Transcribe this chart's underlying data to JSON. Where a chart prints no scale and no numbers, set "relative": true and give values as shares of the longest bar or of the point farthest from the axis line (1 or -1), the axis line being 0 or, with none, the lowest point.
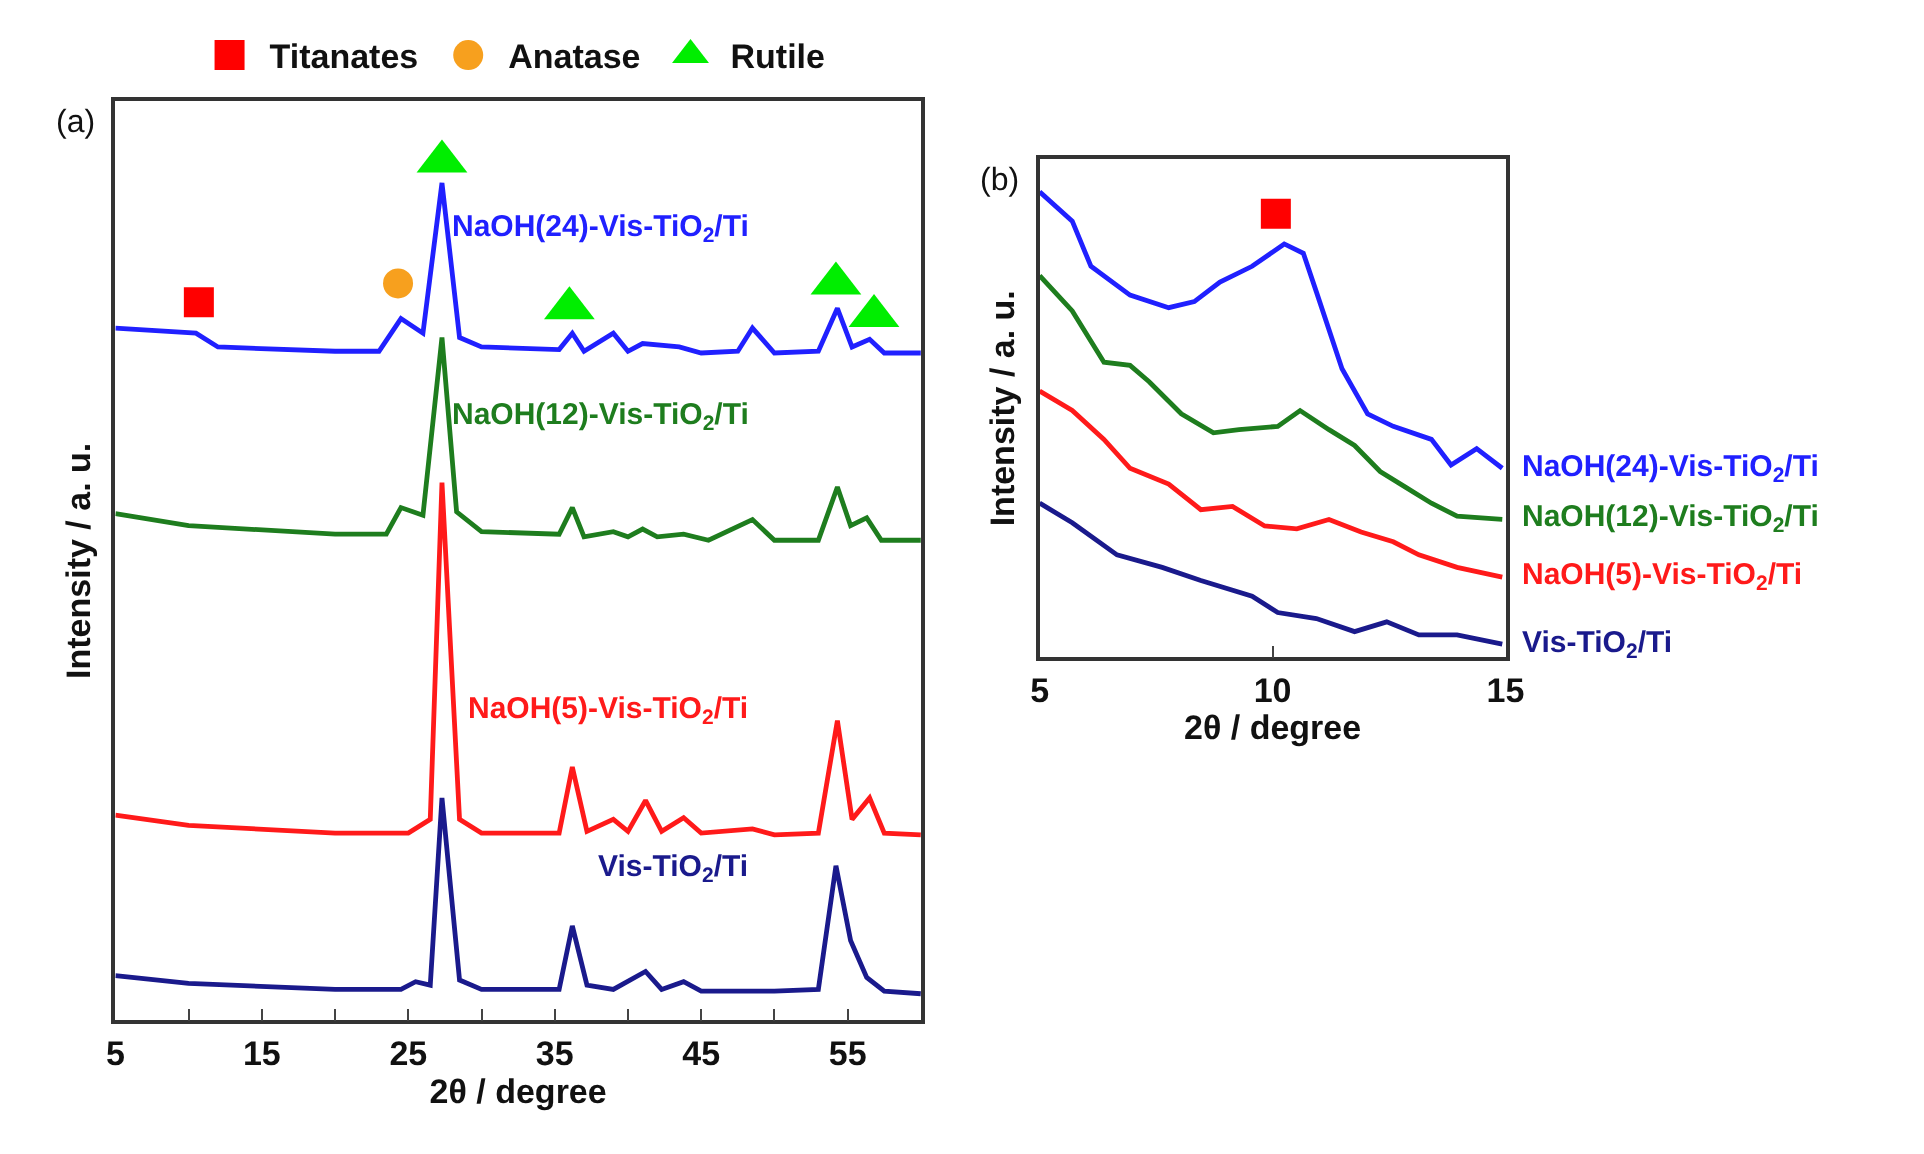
{
  "chart_data": [
    {
      "type": "line",
      "relative": true,
      "xlabel": "2θ / degree",
      "ylabel": "Intensity / a. u.",
      "xlim": [
        5,
        60
      ],
      "xticks": [
        5,
        {
          "value": 10,
          "label": null
        },
        15,
        {
          "value": 20,
          "label": null
        },
        25,
        {
          "value": 30,
          "label": null
        },
        35,
        {
          "value": 40,
          "label": null
        },
        45,
        {
          "value": 50,
          "label": null
        },
        55
      ],
      "legend": "top",
      "annotations": [
        "(a)"
      ],
      "series": [
        {
          "name": "NaOH(24)-Vis-TiO$_{2}$/Ti",
          "color": "#2020ff",
          "x": [
            5,
            10.5,
            12,
            20,
            23,
            24.5,
            26,
            27.3,
            28.5,
            30,
            35.3,
            36.2,
            37,
            39,
            40,
            41,
            43.5,
            45,
            47.5,
            48.5,
            50,
            53,
            54.3,
            55.3,
            56.5,
            57.5,
            60
          ],
          "values": [
            0.806,
            0.8,
            0.784,
            0.779,
            0.779,
            0.817,
            0.8,
            0.975,
            0.795,
            0.784,
            0.781,
            0.8,
            0.779,
            0.8,
            0.779,
            0.788,
            0.784,
            0.777,
            0.779,
            0.806,
            0.777,
            0.779,
            0.829,
            0.784,
            0.793,
            0.777,
            0.777
          ]
        },
        {
          "name": "NaOH(12)-Vis-TiO$_{2}$/Ti",
          "color": "#1e7d1e",
          "x": [
            5,
            10,
            20,
            23.5,
            24.5,
            26,
            27.3,
            28.3,
            30,
            35.3,
            36.2,
            37,
            39,
            40,
            41,
            42,
            43.8,
            45.5,
            48.5,
            50,
            53,
            54.3,
            55.2,
            56.3,
            57.3,
            60
          ],
          "values": [
            0.59,
            0.576,
            0.566,
            0.566,
            0.597,
            0.588,
            0.795,
            0.592,
            0.569,
            0.566,
            0.597,
            0.563,
            0.569,
            0.563,
            0.572,
            0.563,
            0.566,
            0.559,
            0.583,
            0.559,
            0.559,
            0.621,
            0.576,
            0.585,
            0.559,
            0.559
          ]
        },
        {
          "name": "NaOH(5)-Vis-TiO$_{2}$/Ti",
          "color": "#ff1a1a",
          "x": [
            5,
            10,
            20,
            25,
            26.5,
            27.3,
            28.5,
            30,
            35.3,
            36.2,
            37.2,
            39,
            40,
            41.2,
            42.3,
            43.8,
            45,
            48.5,
            50,
            53,
            54.3,
            55.3,
            56.5,
            57.5,
            60
          ],
          "values": [
            0.239,
            0.227,
            0.218,
            0.218,
            0.234,
            0.626,
            0.234,
            0.218,
            0.218,
            0.295,
            0.22,
            0.234,
            0.22,
            0.256,
            0.22,
            0.236,
            0.218,
            0.223,
            0.216,
            0.218,
            0.349,
            0.234,
            0.259,
            0.218,
            0.216
          ]
        },
        {
          "name": "Vis-TiO$_{2}$/Ti",
          "color": "#1a1a8c",
          "x": [
            5,
            10,
            20,
            24.5,
            25.5,
            26.5,
            27.3,
            28.5,
            30,
            35.3,
            36.2,
            37.2,
            39,
            41.2,
            42.3,
            43.8,
            45,
            50,
            53,
            54.2,
            55.2,
            56.3,
            57.5,
            60
          ],
          "values": [
            0.052,
            0.043,
            0.036,
            0.036,
            0.045,
            0.041,
            0.259,
            0.047,
            0.036,
            0.036,
            0.11,
            0.041,
            0.036,
            0.057,
            0.036,
            0.045,
            0.034,
            0.034,
            0.036,
            0.18,
            0.093,
            0.05,
            0.034,
            0.031
          ]
        },
        {
          "type": "scatter",
          "name": "Titanates",
          "color": "#ff0000",
          "marker": "square",
          "x": [
            10.7
          ],
          "values": [
            0.836
          ]
        },
        {
          "type": "scatter",
          "name": "Anatase",
          "color": "#f7a01e",
          "marker": "circle",
          "x": [
            24.3
          ],
          "values": [
            0.858
          ]
        },
        {
          "type": "scatter",
          "name": "Rutile",
          "color": "#00ee00",
          "marker": "triangle",
          "x": [
            27.3,
            36.0,
            54.2,
            56.8
          ],
          "values": [
            1,
            0.829,
            0.858,
            0.82
          ]
        }
      ]
    },
    {
      "type": "line",
      "relative": true,
      "xlabel": "2θ / degree",
      "ylabel": "Intensity / a. u.",
      "xlim": [
        5,
        15
      ],
      "xticks": [
        5,
        10,
        15
      ],
      "annotations": [
        "(b)"
      ],
      "series": [
        {
          "name": "NaOH(24)-Vis-TiO$_{2}$/Ti",
          "color": "#2020ff",
          "x": [
            5.0,
            5.7,
            6.1,
            6.94,
            7.77,
            8.32,
            8.87,
            9.56,
            10.25,
            10.66,
            10.94,
            11.49,
            12.04,
            12.59,
            13.41,
            13.83,
            14.38,
            14.93
          ],
          "values": [
            1,
            0.937,
            0.84,
            0.778,
            0.751,
            0.764,
            0.806,
            0.84,
            0.888,
            0.868,
            0.785,
            0.62,
            0.523,
            0.496,
            0.468,
            0.413,
            0.448,
            0.406
          ]
        },
        {
          "name": "NaOH(12)-Vis-TiO$_{2}$/Ti",
          "color": "#1e7d1e",
          "x": [
            5.0,
            5.7,
            6.38,
            6.94,
            7.35,
            8.04,
            8.73,
            9.28,
            10.11,
            10.59,
            11.21,
            11.76,
            12.31,
            12.86,
            13.41,
            13.96,
            14.93
          ],
          "values": [
            0.82,
            0.744,
            0.634,
            0.627,
            0.592,
            0.523,
            0.482,
            0.489,
            0.496,
            0.53,
            0.489,
            0.455,
            0.399,
            0.365,
            0.331,
            0.303,
            0.296
          ]
        },
        {
          "name": "NaOH(5)-Vis-TiO$_{2}$/Ti",
          "color": "#ff1a1a",
          "x": [
            5.0,
            5.7,
            6.38,
            6.94,
            7.77,
            8.46,
            9.14,
            9.83,
            10.52,
            11.21,
            11.9,
            12.59,
            13.14,
            13.96,
            14.93
          ],
          "values": [
            0.572,
            0.53,
            0.468,
            0.406,
            0.372,
            0.317,
            0.324,
            0.282,
            0.276,
            0.296,
            0.269,
            0.248,
            0.22,
            0.193,
            0.172
          ]
        },
        {
          "name": "Vis-TiO$_{2}$/Ti",
          "color": "#1a1a8c",
          "x": [
            5.0,
            5.7,
            6.66,
            7.63,
            8.46,
            9.56,
            10.11,
            10.94,
            11.76,
            12.45,
            13.14,
            13.96,
            14.93
          ],
          "values": [
            0.331,
            0.289,
            0.22,
            0.193,
            0.165,
            0.131,
            0.096,
            0.083,
            0.055,
            0.076,
            0.048,
            0.048,
            0.028
          ]
        },
        {
          "type": "scatter",
          "color": "#ff0000",
          "marker": "square",
          "x": [
            10.07
          ],
          "values": [
            0.953
          ]
        }
      ]
    }
  ]
}
